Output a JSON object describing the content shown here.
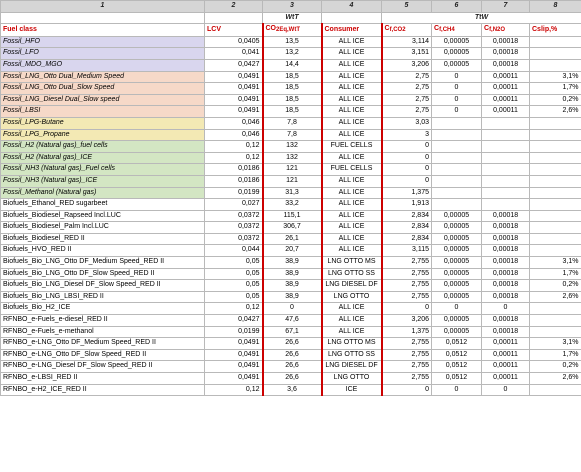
{
  "index_row": [
    "1",
    "2",
    "3",
    "4",
    "5",
    "6",
    "7",
    "8"
  ],
  "group_row": {
    "wtt": "WtT",
    "ttw": "TtW"
  },
  "columns": {
    "fuel_class": "Fuel class",
    "lcv": "LCV",
    "co2_main": "CO",
    "co2_sub": "2Eq,WtT",
    "consumer": "Consumer",
    "c_main": "C",
    "cco2_sub": "f,CO2",
    "cch4_sub": "f,CH4",
    "cn2o_sub": "f,N2O",
    "cslip": "Cslip,%"
  },
  "rows": [
    {
      "group": "fossil",
      "fuel": "Fossil_HFO",
      "lcv": "0,0405",
      "co2": "13,5",
      "consumer": "ALL ICE",
      "cco2": "3,114",
      "cch4": "0,00005",
      "cn2o": "0,00018",
      "slip": ""
    },
    {
      "group": "fossil",
      "fuel": "Fossil_LFO",
      "lcv": "0,041",
      "co2": "13,2",
      "consumer": "ALL ICE",
      "cco2": "3,151",
      "cch4": "0,00005",
      "cn2o": "0,00018",
      "slip": ""
    },
    {
      "group": "fossil",
      "fuel": "Fossil_MDO_MGO",
      "lcv": "0,0427",
      "co2": "14,4",
      "consumer": "ALL ICE",
      "cco2": "3,206",
      "cch4": "0,00005",
      "cn2o": "0,00018",
      "slip": ""
    },
    {
      "group": "lng",
      "fuel": "Fossil_LNG_Otto Dual_Medium Speed",
      "lcv": "0,0491",
      "co2": "18,5",
      "consumer": "ALL ICE",
      "cco2": "2,75",
      "cch4": "0",
      "cn2o": "0,00011",
      "slip": "3,1%"
    },
    {
      "group": "lng",
      "fuel": "Fossil_LNG_Otto Dual_Slow Speed",
      "lcv": "0,0491",
      "co2": "18,5",
      "consumer": "ALL ICE",
      "cco2": "2,75",
      "cch4": "0",
      "cn2o": "0,00011",
      "slip": "1,7%"
    },
    {
      "group": "lng",
      "fuel": "Fossil_LNG_Diesel Dual_Slow speed",
      "lcv": "0,0491",
      "co2": "18,5",
      "consumer": "ALL ICE",
      "cco2": "2,75",
      "cch4": "0",
      "cn2o": "0,00011",
      "slip": "0,2%"
    },
    {
      "group": "lng",
      "fuel": "Fossil_LBSI",
      "lcv": "0,0491",
      "co2": "18,5",
      "consumer": "ALL ICE",
      "cco2": "2,75",
      "cch4": "0",
      "cn2o": "0,00011",
      "slip": "2,6%"
    },
    {
      "group": "lpg",
      "fuel": "Fossil_LPG-Butane",
      "lcv": "0,046",
      "co2": "7,8",
      "consumer": "ALL ICE",
      "cco2": "3,03",
      "cch4": "",
      "cn2o": "",
      "slip": ""
    },
    {
      "group": "lpg",
      "fuel": "Fossil_LPG_Propane",
      "lcv": "0,046",
      "co2": "7,8",
      "consumer": "ALL ICE",
      "cco2": "3",
      "cch4": "",
      "cn2o": "",
      "slip": ""
    },
    {
      "group": "h2",
      "fuel": "Fossil_H2 (Natural gas)_fuel cells",
      "lcv": "0,12",
      "co2": "132",
      "consumer": "FUEL CELLS",
      "cco2": "0",
      "cch4": "",
      "cn2o": "",
      "slip": ""
    },
    {
      "group": "h2",
      "fuel": "Fossil_H2 (Natural gas)_ICE",
      "lcv": "0,12",
      "co2": "132",
      "consumer": "ALL ICE",
      "cco2": "0",
      "cch4": "",
      "cn2o": "",
      "slip": ""
    },
    {
      "group": "h2",
      "fuel": "Fossil_NH3 (Natural gas)_Fuel cells",
      "lcv": "0,0186",
      "co2": "121",
      "consumer": "FUEL CELLS",
      "cco2": "0",
      "cch4": "",
      "cn2o": "",
      "slip": ""
    },
    {
      "group": "h2",
      "fuel": "Fossil_NH3 (Natural gas)_ICE",
      "lcv": "0,0186",
      "co2": "121",
      "consumer": "ALL ICE",
      "cco2": "0",
      "cch4": "",
      "cn2o": "",
      "slip": ""
    },
    {
      "group": "h2",
      "fuel": "Fossil_Methanol (Natural gas)",
      "lcv": "0,0199",
      "co2": "31,3",
      "consumer": "ALL ICE",
      "cco2": "1,375",
      "cch4": "",
      "cn2o": "",
      "slip": ""
    },
    {
      "group": "bio",
      "fuel": "Biofuels_Ethanol_RED sugarbeet",
      "lcv": "0,027",
      "co2": "33,2",
      "consumer": "ALL ICE",
      "cco2": "1,913",
      "cch4": "",
      "cn2o": "",
      "slip": ""
    },
    {
      "group": "bio",
      "fuel": "Biofuels_Biodiesel_Rapseed Incl.LUC",
      "lcv": "0,0372",
      "co2": "115,1",
      "consumer": "ALL ICE",
      "cco2": "2,834",
      "cch4": "0,00005",
      "cn2o": "0,00018",
      "slip": ""
    },
    {
      "group": "bio",
      "fuel": "Biofuels_Biodiesel_Palm Incl.LUC",
      "lcv": "0,0372",
      "co2": "306,7",
      "consumer": "ALL ICE",
      "cco2": "2,834",
      "cch4": "0,00005",
      "cn2o": "0,00018",
      "slip": ""
    },
    {
      "group": "bio",
      "fuel": "Biofuels_Biodiesel_RED II",
      "lcv": "0,0372",
      "co2": "26,1",
      "consumer": "ALL ICE",
      "cco2": "2,834",
      "cch4": "0,00005",
      "cn2o": "0,00018",
      "slip": ""
    },
    {
      "group": "bio",
      "fuel": "Biofuels_HVO_RED II",
      "lcv": "0,044",
      "co2": "20,7",
      "consumer": "ALL ICE",
      "cco2": "3,115",
      "cch4": "0,00005",
      "cn2o": "0,00018",
      "slip": ""
    },
    {
      "group": "bio",
      "fuel": "Biofuels_Bio_LNG_Otto DF_Medium Speed_RED II",
      "lcv": "0,05",
      "co2": "38,9",
      "consumer": "LNG OTTO MS",
      "cco2": "2,755",
      "cch4": "0,00005",
      "cn2o": "0,00018",
      "slip": "3,1%"
    },
    {
      "group": "bio",
      "fuel": "Biofuels_Bio_LNG_Otto DF_Slow Speed_RED II",
      "lcv": "0,05",
      "co2": "38,9",
      "consumer": "LNG OTTO SS",
      "cco2": "2,755",
      "cch4": "0,00005",
      "cn2o": "0,00018",
      "slip": "1,7%"
    },
    {
      "group": "bio",
      "fuel": "Biofuels_Bio_LNG_Diesel DF_Slow Speed_RED II",
      "lcv": "0,05",
      "co2": "38,9",
      "consumer": "LNG DIESEL DF",
      "cco2": "2,755",
      "cch4": "0,00005",
      "cn2o": "0,00018",
      "slip": "0,2%"
    },
    {
      "group": "bio",
      "fuel": "Biofuels_Bio_LNG_LBSI_RED II",
      "lcv": "0,05",
      "co2": "38,9",
      "consumer": "LNG OTTO",
      "cco2": "2,755",
      "cch4": "0,00005",
      "cn2o": "0,00018",
      "slip": "2,6%"
    },
    {
      "group": "bio",
      "fuel": "Biofuels_Bio_H2_ICE",
      "lcv": "0,12",
      "co2": "0",
      "consumer": "ALL ICE",
      "cco2": "0",
      "cch4": "0",
      "cn2o": "0",
      "slip": ""
    },
    {
      "group": "rfnbo",
      "fuel": "RFNBO_e-Fuels_e-diesel_RED II",
      "lcv": "0,0427",
      "co2": "47,6",
      "consumer": "ALL ICE",
      "cco2": "3,206",
      "cch4": "0,00005",
      "cn2o": "0,00018",
      "slip": ""
    },
    {
      "group": "rfnbo",
      "fuel": "RFNBO_e-Fuels_e-methanol",
      "lcv": "0,0199",
      "co2": "67,1",
      "consumer": "ALL ICE",
      "cco2": "1,375",
      "cch4": "0,00005",
      "cn2o": "0,00018",
      "slip": ""
    },
    {
      "group": "rfnbo",
      "fuel": "RFNBO_e-LNG_Otto DF_Medium Speed_RED II",
      "lcv": "0,0491",
      "co2": "26,6",
      "consumer": "LNG OTTO MS",
      "cco2": "2,755",
      "cch4": "0,0512",
      "cn2o": "0,00011",
      "slip": "3,1%"
    },
    {
      "group": "rfnbo",
      "fuel": "RFNBO_e-LNG_Otto DF_Slow Speed_RED II",
      "lcv": "0,0491",
      "co2": "26,6",
      "consumer": "LNG OTTO SS",
      "cco2": "2,755",
      "cch4": "0,0512",
      "cn2o": "0,00011",
      "slip": "1,7%"
    },
    {
      "group": "rfnbo",
      "fuel": "RFNBO_e-LNG_Diesel DF_Slow Speed_RED II",
      "lcv": "0,0491",
      "co2": "26,6",
      "consumer": "LNG DIESEL DF",
      "cco2": "2,755",
      "cch4": "0,0512",
      "cn2o": "0,00011",
      "slip": "0,2%"
    },
    {
      "group": "rfnbo",
      "fuel": "RFNBO_e-LBSI_RED II",
      "lcv": "0,0491",
      "co2": "26,6",
      "consumer": "LNG OTTO",
      "cco2": "2,755",
      "cch4": "0,0512",
      "cn2o": "0,00011",
      "slip": "2,6%"
    },
    {
      "group": "rfnbo",
      "fuel": "RFNBO_e-H2_ICE_RED II",
      "lcv": "0,12",
      "co2": "3,6",
      "consumer": "ICE",
      "cco2": "0",
      "cch4": "0",
      "cn2o": "0",
      "slip": ""
    }
  ]
}
